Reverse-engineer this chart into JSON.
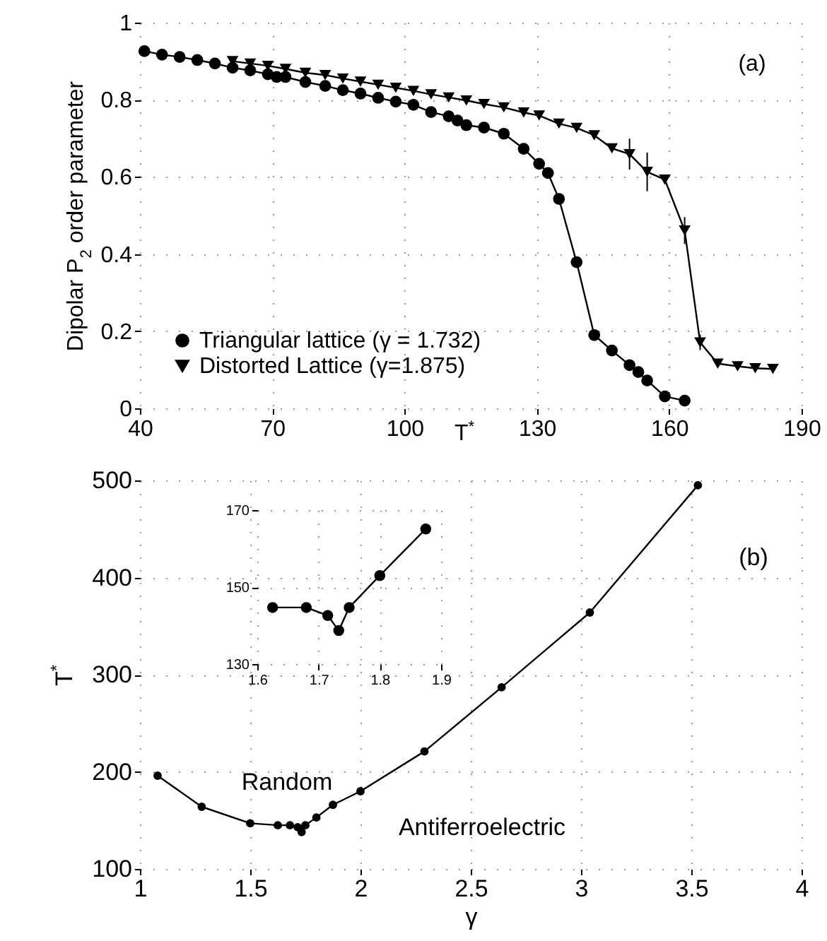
{
  "chart_data": [
    {
      "type": "line",
      "xlabel": "T$^{*}$",
      "ylabel": "Dipolar P$_{2}$ order parameter",
      "xlim": [
        40,
        190
      ],
      "xticks": [
        40,
        70,
        100,
        130,
        160,
        190
      ],
      "ylim": [
        0,
        1
      ],
      "yticks": [
        0,
        0.2,
        0.4,
        0.6,
        0.8,
        1
      ],
      "grid": true,
      "legend": "bottom left",
      "annotations": [
        "(a)"
      ],
      "series": [
        {
          "name": "Triangular lattice (γ = 1.732)",
          "color": "#000000",
          "marker": "circle",
          "x": [
            41,
            45,
            49,
            53,
            57,
            61,
            65,
            69,
            71,
            73,
            77.5,
            82,
            86,
            90,
            94,
            98,
            102,
            106,
            110,
            112,
            114,
            118,
            122.5,
            127,
            130.5,
            132.5,
            135,
            139,
            143,
            147,
            151,
            153,
            155,
            159,
            163.5
          ],
          "values": [
            0.926,
            0.917,
            0.911,
            0.903,
            0.894,
            0.883,
            0.876,
            0.866,
            0.859,
            0.859,
            0.846,
            0.836,
            0.825,
            0.816,
            0.805,
            0.795,
            0.787,
            0.768,
            0.757,
            0.746,
            0.734,
            0.728,
            0.712,
            0.673,
            0.634,
            0.61,
            0.543,
            0.379,
            0.19,
            0.15,
            0.112,
            0.094,
            0.072,
            0.031,
            0.02
          ]
        },
        {
          "name": "Distorted Lattice (γ=1.875)",
          "color": "#000000",
          "marker": "triangle",
          "x": [
            61,
            65,
            69,
            73,
            77.5,
            82,
            86,
            90,
            94,
            98,
            102,
            106,
            110,
            114,
            118,
            122.5,
            127,
            130.5,
            135,
            139,
            143,
            147,
            151,
            155,
            159,
            163.5,
            167,
            171,
            175.5,
            179.5,
            183.5
          ],
          "values": [
            0.9,
            0.894,
            0.888,
            0.88,
            0.87,
            0.864,
            0.855,
            0.847,
            0.839,
            0.831,
            0.823,
            0.814,
            0.806,
            0.798,
            0.789,
            0.78,
            0.767,
            0.759,
            0.738,
            0.727,
            0.708,
            0.674,
            0.659,
            0.613,
            0.593,
            0.461,
            0.171,
            0.116,
            0.109,
            0.104,
            0.102
          ],
          "errors": [
            null,
            null,
            null,
            null,
            null,
            null,
            null,
            null,
            null,
            null,
            null,
            null,
            null,
            null,
            null,
            null,
            0.01,
            null,
            null,
            null,
            0.01,
            null,
            0.04,
            0.05,
            null,
            0.035,
            0.02,
            null,
            null,
            null,
            null
          ]
        }
      ]
    },
    {
      "type": "line",
      "xlabel": "γ",
      "ylabel": "T$^{*}$",
      "xlim": [
        1,
        4
      ],
      "xticks": [
        1,
        1.5,
        2,
        2.5,
        3,
        3.5,
        4
      ],
      "ylim": [
        100,
        500
      ],
      "yticks": [
        100,
        200,
        300,
        400,
        500
      ],
      "grid": true,
      "marker": "circle",
      "annotations": [
        "(b)",
        "Random",
        "Antiferroelectric"
      ],
      "color": "#000000",
      "x": [
        1.08,
        1.28,
        1.5,
        1.625,
        1.68,
        1.715,
        1.733,
        1.75,
        1.8,
        1.875,
        2,
        2.29,
        2.64,
        3.04,
        3.53
      ],
      "values": [
        196,
        164,
        147,
        145,
        145,
        143,
        138,
        145,
        153,
        166,
        180,
        221,
        287,
        364,
        495
      ]
    },
    {
      "type": "line",
      "xlim": [
        1.6,
        1.9
      ],
      "xticks": [
        1.6,
        1.7,
        1.8,
        1.9
      ],
      "ylim": [
        130,
        170
      ],
      "yticks": [
        130,
        150,
        170
      ],
      "grid": true,
      "marker": "circle",
      "color": "#000000",
      "x": [
        1.625,
        1.68,
        1.715,
        1.733,
        1.75,
        1.8,
        1.875
      ],
      "values": [
        144.7,
        144.7,
        142.6,
        138.7,
        144.7,
        153,
        165.1
      ]
    }
  ]
}
